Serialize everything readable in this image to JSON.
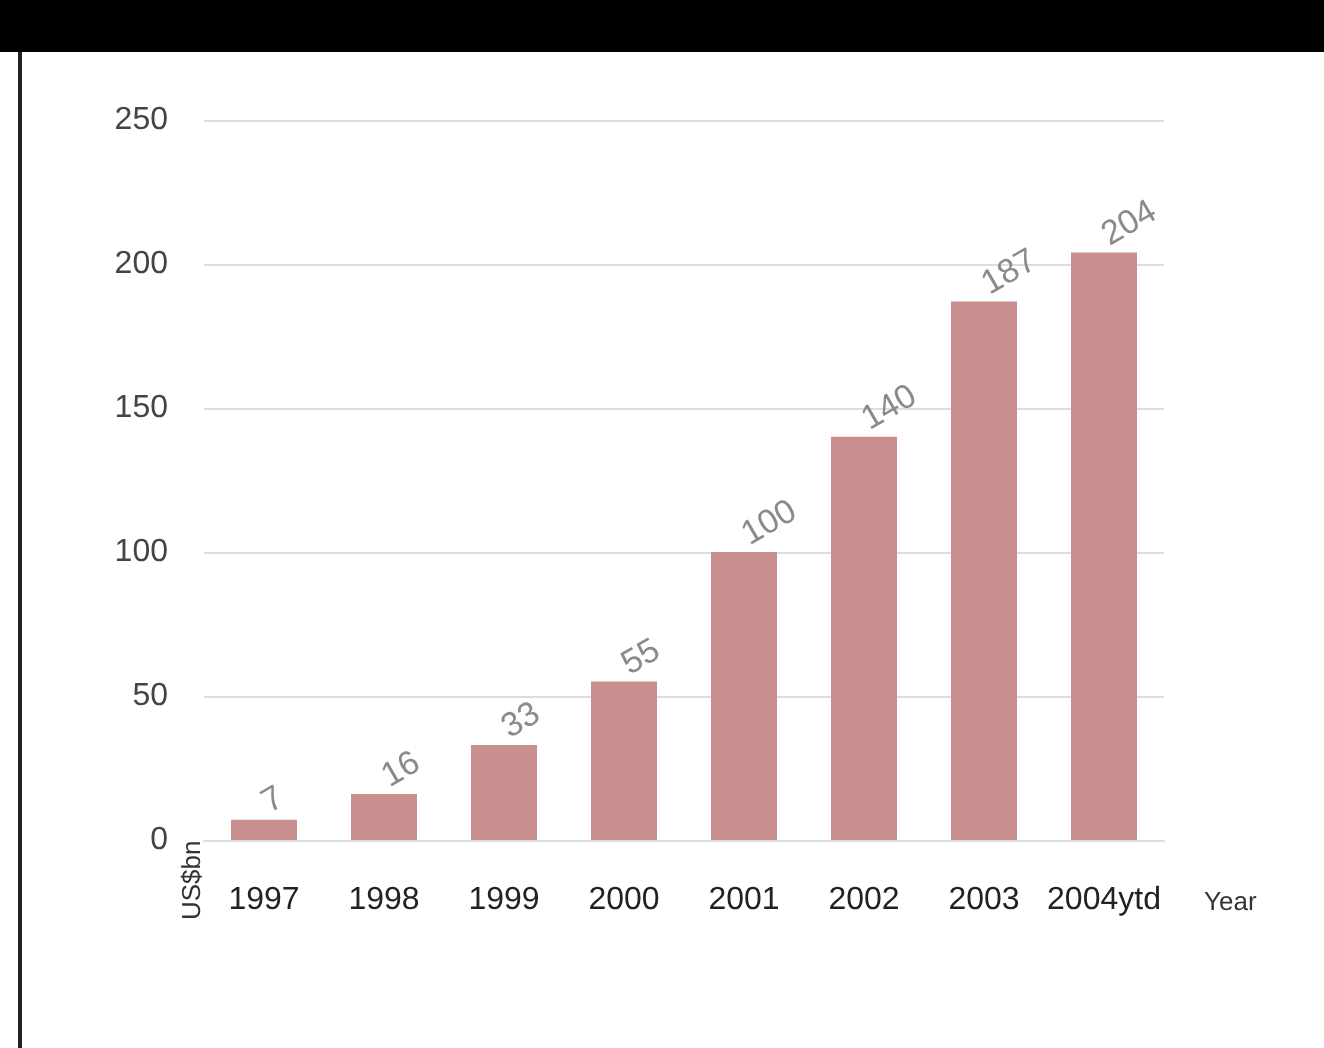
{
  "chart_data": {
    "type": "bar",
    "categories": [
      "1997",
      "1998",
      "1999",
      "2000",
      "2001",
      "2002",
      "2003",
      "2004ytd"
    ],
    "values": [
      7,
      16,
      33,
      55,
      100,
      140,
      187,
      204
    ],
    "color": "#c98f8f",
    "xlabel": "Year",
    "ylabel": "US$bn",
    "ylim": [
      0,
      250
    ],
    "yticks": [
      0,
      50,
      100,
      150,
      200,
      250
    ],
    "grid": "y",
    "data_labels": true
  }
}
